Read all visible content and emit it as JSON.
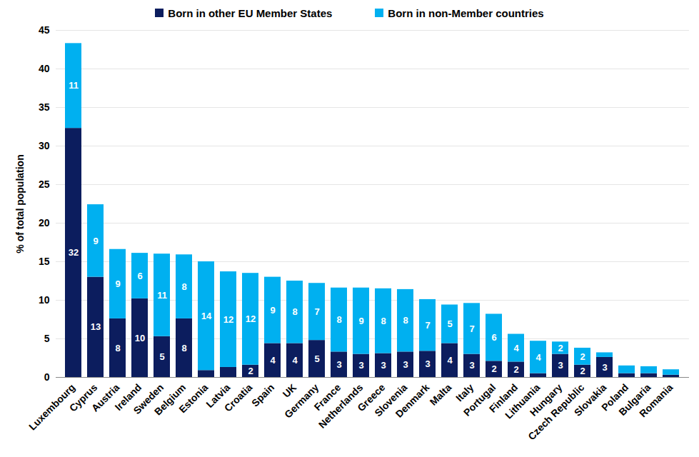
{
  "chart_data": {
    "type": "bar",
    "stacked": true,
    "data_labels": true,
    "grid": true,
    "legend": "top",
    "y_label": "% of total population",
    "categories": [
      "Luxembourg",
      "Cyprus",
      "Austria",
      "Ireland",
      "Sweden",
      "Belgium",
      "Estonia",
      "Latvia",
      "Croatia",
      "Spain",
      "UK",
      "Germany",
      "France",
      "Netherlands",
      "Greece",
      "Slovenia",
      "Denmark",
      "Malta",
      "Italy",
      "Portugal",
      "Finland",
      "Lithuania",
      "Hungary",
      "Czech Republic",
      "Slovakia",
      "Poland",
      "Bulgaria",
      "Romania"
    ],
    "series": [
      {
        "name": "Born in other EU Member States",
        "color": "#0c1d5e",
        "values": [
          32.3,
          13.0,
          7.6,
          10.2,
          5.3,
          7.6,
          0.9,
          1.3,
          1.6,
          4.4,
          4.4,
          4.8,
          3.3,
          3.0,
          3.1,
          3.3,
          3.4,
          4.4,
          3.0,
          2.1,
          2.0,
          0.5,
          3.0,
          1.6,
          2.6,
          0.5,
          0.5,
          0.3
        ],
        "value_labels": [
          "32",
          "13",
          "8",
          "10",
          "5",
          "8",
          null,
          null,
          "2",
          "4",
          "4",
          "5",
          "3",
          "3",
          "3",
          "3",
          "3",
          "4",
          "3",
          "2",
          "2",
          null,
          "3",
          "2",
          "3",
          null,
          null,
          null
        ]
      },
      {
        "name": "Born in non-Member countries",
        "color": "#00b0f0",
        "values": [
          11.0,
          9.4,
          9.0,
          5.9,
          10.7,
          8.3,
          14.1,
          12.4,
          11.9,
          8.6,
          8.1,
          7.4,
          8.3,
          8.6,
          8.4,
          8.1,
          6.7,
          5.0,
          6.6,
          6.1,
          3.6,
          4.2,
          1.6,
          2.2,
          0.6,
          1.0,
          0.9,
          0.7
        ],
        "value_labels": [
          "11",
          "9",
          "9",
          "6",
          "11",
          "8",
          "14",
          "12",
          "12",
          "9",
          "8",
          "7",
          "8",
          "9",
          "8",
          "8",
          "7",
          "5",
          "7",
          "6",
          "4",
          "4",
          "2",
          "2",
          null,
          null,
          null,
          null
        ]
      }
    ],
    "ylim": [
      0,
      45
    ],
    "yticks": [
      0,
      5,
      10,
      15,
      20,
      25,
      30,
      35,
      40,
      45
    ]
  }
}
